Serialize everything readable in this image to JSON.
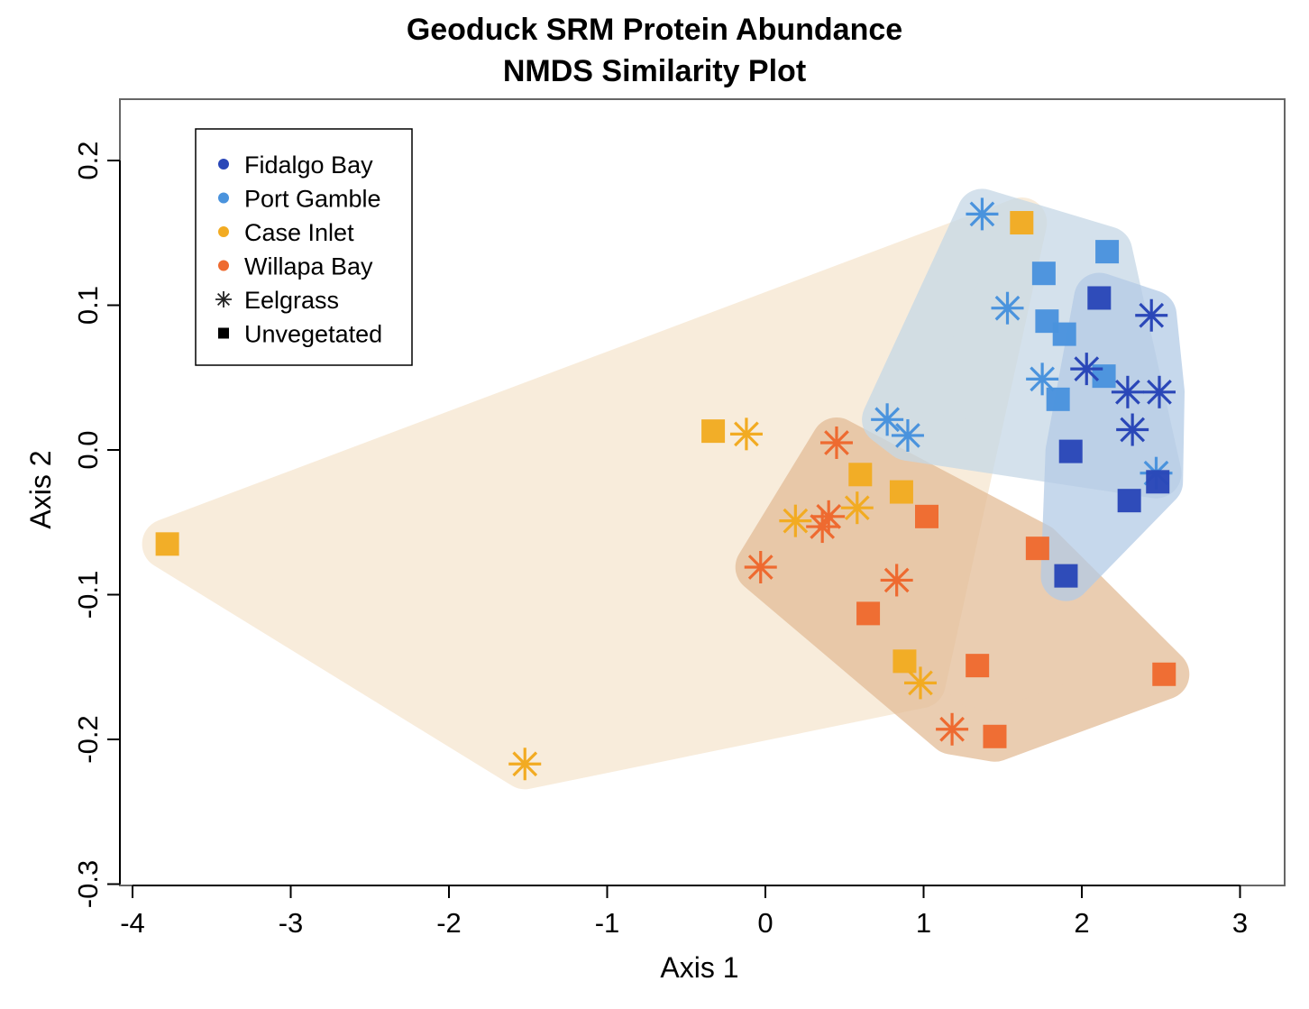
{
  "chart_data": {
    "type": "scatter",
    "title": "Geoduck SRM Protein Abundance",
    "subtitle": "NMDS Similarity Plot",
    "xlabel": "Axis 1",
    "ylabel": "Axis 2",
    "xlim": [
      -4.1,
      3.3
    ],
    "ylim": [
      -0.3,
      0.24
    ],
    "x_ticks": [
      -4,
      -3,
      -2,
      -1,
      0,
      1,
      2,
      3
    ],
    "x_tick_labels": [
      "-4",
      "-3",
      "-2",
      "-1",
      "0",
      "1",
      "2",
      "3"
    ],
    "y_ticks": [
      -0.3,
      -0.2,
      -0.1,
      0.0,
      0.1,
      0.2
    ],
    "y_tick_labels": [
      "-0.3",
      "-0.2",
      "-0.1",
      "0.0",
      "0.1",
      "0.2"
    ],
    "grid": false,
    "legend_position": "top-left",
    "legend": [
      {
        "label": "Fidalgo Bay",
        "symbol": "dot",
        "color": "#2a47b8"
      },
      {
        "label": "Port Gamble",
        "symbol": "dot",
        "color": "#4a93dd"
      },
      {
        "label": "Case Inlet",
        "symbol": "dot",
        "color": "#f2ab22"
      },
      {
        "label": "Willapa Bay",
        "symbol": "dot",
        "color": "#ee6a30"
      },
      {
        "label": "Eelgrass",
        "symbol": "asterisk",
        "color": "#222222"
      },
      {
        "label": "Unvegetated",
        "symbol": "square",
        "color": "#000000"
      }
    ],
    "site_colors": {
      "Fidalgo Bay": "#2a47b8",
      "Port Gamble": "#4a93dd",
      "Case Inlet": "#f2ab22",
      "Willapa Bay": "#ee6a30"
    },
    "hulls": [
      {
        "site": "Case Inlet",
        "fill": "#f6e6cf"
      },
      {
        "site": "Willapa Bay",
        "fill": "#e3bd98"
      },
      {
        "site": "Port Gamble",
        "fill": "#c6d8e6"
      },
      {
        "site": "Fidalgo Bay",
        "fill": "#b4cbe6"
      }
    ],
    "points": [
      {
        "site": "Case Inlet",
        "habitat": "Unvegetated",
        "x": -3.78,
        "y": -0.065
      },
      {
        "site": "Case Inlet",
        "habitat": "Eelgrass",
        "x": -1.52,
        "y": -0.217
      },
      {
        "site": "Case Inlet",
        "habitat": "Unvegetated",
        "x": -0.33,
        "y": 0.013
      },
      {
        "site": "Case Inlet",
        "habitat": "Eelgrass",
        "x": -0.12,
        "y": 0.011
      },
      {
        "site": "Case Inlet",
        "habitat": "Eelgrass",
        "x": 0.19,
        "y": -0.049
      },
      {
        "site": "Case Inlet",
        "habitat": "Eelgrass",
        "x": 0.58,
        "y": -0.04
      },
      {
        "site": "Case Inlet",
        "habitat": "Unvegetated",
        "x": 0.6,
        "y": -0.017
      },
      {
        "site": "Case Inlet",
        "habitat": "Unvegetated",
        "x": 0.86,
        "y": -0.029
      },
      {
        "site": "Case Inlet",
        "habitat": "Unvegetated",
        "x": 0.88,
        "y": -0.146
      },
      {
        "site": "Case Inlet",
        "habitat": "Eelgrass",
        "x": 0.98,
        "y": -0.161
      },
      {
        "site": "Case Inlet",
        "habitat": "Unvegetated",
        "x": 1.62,
        "y": 0.157
      },
      {
        "site": "Willapa Bay",
        "habitat": "Eelgrass",
        "x": -0.03,
        "y": -0.081
      },
      {
        "site": "Willapa Bay",
        "habitat": "Eelgrass",
        "x": 0.36,
        "y": -0.053
      },
      {
        "site": "Willapa Bay",
        "habitat": "Eelgrass",
        "x": 0.4,
        "y": -0.046
      },
      {
        "site": "Willapa Bay",
        "habitat": "Eelgrass",
        "x": 0.45,
        "y": 0.005
      },
      {
        "site": "Willapa Bay",
        "habitat": "Unvegetated",
        "x": 0.65,
        "y": -0.113
      },
      {
        "site": "Willapa Bay",
        "habitat": "Eelgrass",
        "x": 0.83,
        "y": -0.09
      },
      {
        "site": "Willapa Bay",
        "habitat": "Unvegetated",
        "x": 1.02,
        "y": -0.046
      },
      {
        "site": "Willapa Bay",
        "habitat": "Eelgrass",
        "x": 1.18,
        "y": -0.193
      },
      {
        "site": "Willapa Bay",
        "habitat": "Unvegetated",
        "x": 1.34,
        "y": -0.149
      },
      {
        "site": "Willapa Bay",
        "habitat": "Unvegetated",
        "x": 1.45,
        "y": -0.198
      },
      {
        "site": "Willapa Bay",
        "habitat": "Unvegetated",
        "x": 1.72,
        "y": -0.068
      },
      {
        "site": "Willapa Bay",
        "habitat": "Unvegetated",
        "x": 2.52,
        "y": -0.155
      },
      {
        "site": "Port Gamble",
        "habitat": "Eelgrass",
        "x": 0.77,
        "y": 0.021
      },
      {
        "site": "Port Gamble",
        "habitat": "Eelgrass",
        "x": 0.9,
        "y": 0.01
      },
      {
        "site": "Port Gamble",
        "habitat": "Eelgrass",
        "x": 1.37,
        "y": 0.163
      },
      {
        "site": "Port Gamble",
        "habitat": "Eelgrass",
        "x": 1.53,
        "y": 0.098
      },
      {
        "site": "Port Gamble",
        "habitat": "Eelgrass",
        "x": 1.75,
        "y": 0.049
      },
      {
        "site": "Port Gamble",
        "habitat": "Unvegetated",
        "x": 1.76,
        "y": 0.122
      },
      {
        "site": "Port Gamble",
        "habitat": "Unvegetated",
        "x": 1.78,
        "y": 0.089
      },
      {
        "site": "Port Gamble",
        "habitat": "Unvegetated",
        "x": 1.85,
        "y": 0.035
      },
      {
        "site": "Port Gamble",
        "habitat": "Unvegetated",
        "x": 1.89,
        "y": 0.08
      },
      {
        "site": "Port Gamble",
        "habitat": "Unvegetated",
        "x": 2.14,
        "y": 0.051
      },
      {
        "site": "Port Gamble",
        "habitat": "Unvegetated",
        "x": 2.16,
        "y": 0.137
      },
      {
        "site": "Port Gamble",
        "habitat": "Eelgrass",
        "x": 2.47,
        "y": -0.016
      },
      {
        "site": "Fidalgo Bay",
        "habitat": "Unvegetated",
        "x": 1.9,
        "y": -0.087
      },
      {
        "site": "Fidalgo Bay",
        "habitat": "Unvegetated",
        "x": 1.93,
        "y": -0.001
      },
      {
        "site": "Fidalgo Bay",
        "habitat": "Eelgrass",
        "x": 2.03,
        "y": 0.056
      },
      {
        "site": "Fidalgo Bay",
        "habitat": "Unvegetated",
        "x": 2.11,
        "y": 0.105
      },
      {
        "site": "Fidalgo Bay",
        "habitat": "Eelgrass",
        "x": 2.29,
        "y": 0.04
      },
      {
        "site": "Fidalgo Bay",
        "habitat": "Unvegetated",
        "x": 2.3,
        "y": -0.035
      },
      {
        "site": "Fidalgo Bay",
        "habitat": "Eelgrass",
        "x": 2.32,
        "y": 0.014
      },
      {
        "site": "Fidalgo Bay",
        "habitat": "Eelgrass",
        "x": 2.44,
        "y": 0.093
      },
      {
        "site": "Fidalgo Bay",
        "habitat": "Unvegetated",
        "x": 2.48,
        "y": -0.022
      },
      {
        "site": "Fidalgo Bay",
        "habitat": "Eelgrass",
        "x": 2.49,
        "y": 0.04
      }
    ]
  }
}
